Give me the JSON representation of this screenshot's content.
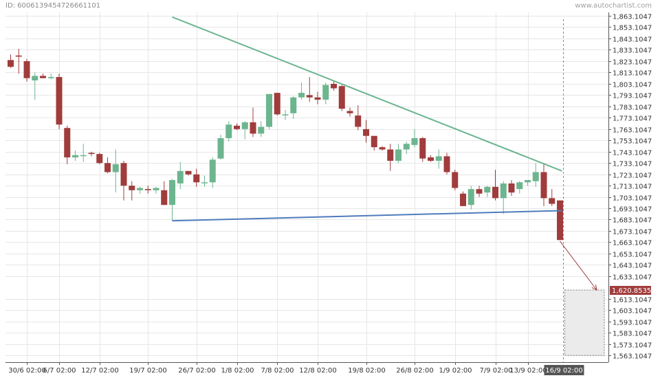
{
  "header": {
    "id_label": "ID: 6006139454726661101",
    "watermark": "www.autochartist.com"
  },
  "colors": {
    "up": "#6db58f",
    "down": "#a03c3c",
    "resistance": "#6ab48f",
    "support": "#4f7bbd",
    "projection": "#a03c3c",
    "target_label_bg": "#a03c3c",
    "current_label_bg": "#555555",
    "grid": "#e6e6e6",
    "axis": "#555555"
  },
  "chart_data": {
    "type": "candlestick",
    "y_axis": {
      "position": "right",
      "range": [
        1557.1047,
        1866.1047
      ],
      "ticks": [
        1863.1047,
        1853.1047,
        1843.1047,
        1833.1047,
        1823.1047,
        1813.1047,
        1803.1047,
        1793.1047,
        1783.1047,
        1773.1047,
        1763.1047,
        1753.1047,
        1743.1047,
        1733.1047,
        1723.1047,
        1713.1047,
        1703.1047,
        1693.1047,
        1683.1047,
        1673.1047,
        1663.1047,
        1653.1047,
        1643.1047,
        1633.1047,
        1613.1047,
        1603.1047,
        1593.1047,
        1583.1047,
        1573.1047,
        1563.1047
      ],
      "tick_labels": [
        "1,863.1047",
        "1,853.1047",
        "1,843.1047",
        "1,833.1047",
        "1,823.1047",
        "1,813.1047",
        "1,803.1047",
        "1,793.1047",
        "1,783.1047",
        "1,773.1047",
        "1,763.1047",
        "1,753.1047",
        "1,743.1047",
        "1,733.1047",
        "1,723.1047",
        "1,713.1047",
        "1,703.1047",
        "1,693.1047",
        "1,683.1047",
        "1,673.1047",
        "1,663.1047",
        "1,653.1047",
        "1,643.1047",
        "1,633.1047",
        "1,613.1047",
        "1,603.1047",
        "1,593.1047",
        "1,583.1047",
        "1,573.1047",
        "1,563.1047"
      ]
    },
    "x_labels": [
      {
        "index": 2,
        "text": "30/6 02:00"
      },
      {
        "index": 6,
        "text": "6/7 02:00"
      },
      {
        "index": 11,
        "text": "12/7 02:00"
      },
      {
        "index": 17,
        "text": "19/7 02:00"
      },
      {
        "index": 23,
        "text": "26/7 02:00"
      },
      {
        "index": 28,
        "text": "1/8 02:00"
      },
      {
        "index": 33,
        "text": "7/8 02:00"
      },
      {
        "index": 38,
        "text": "12/8 02:00"
      },
      {
        "index": 44,
        "text": "19/8 02:00"
      },
      {
        "index": 50,
        "text": "26/8 02:00"
      },
      {
        "index": 55,
        "text": "1/9 02:00"
      },
      {
        "index": 60,
        "text": "7/9 02:00"
      },
      {
        "index": 64,
        "text": "13/9 02:00"
      }
    ],
    "current_label": "16/9 02:00",
    "candles": [
      {
        "o": 1824,
        "h": 1829,
        "l": 1817,
        "c": 1818
      },
      {
        "o": 1828,
        "h": 1834,
        "l": 1812,
        "c": 1827
      },
      {
        "o": 1823,
        "h": 1825,
        "l": 1805,
        "c": 1808
      },
      {
        "o": 1806,
        "h": 1813,
        "l": 1789,
        "c": 1810
      },
      {
        "o": 1810,
        "h": 1812,
        "l": 1808,
        "c": 1808
      },
      {
        "o": 1808,
        "h": 1812,
        "l": 1807,
        "c": 1809
      },
      {
        "o": 1809,
        "h": 1812,
        "l": 1763,
        "c": 1767
      },
      {
        "o": 1764,
        "h": 1766,
        "l": 1732,
        "c": 1738
      },
      {
        "o": 1738,
        "h": 1744,
        "l": 1735,
        "c": 1740
      },
      {
        "o": 1740,
        "h": 1750,
        "l": 1734,
        "c": 1740
      },
      {
        "o": 1742,
        "h": 1743,
        "l": 1739,
        "c": 1741
      },
      {
        "o": 1741,
        "h": 1742,
        "l": 1732,
        "c": 1733
      },
      {
        "o": 1733,
        "h": 1738,
        "l": 1724,
        "c": 1725
      },
      {
        "o": 1725,
        "h": 1745,
        "l": 1707,
        "c": 1732
      },
      {
        "o": 1733,
        "h": 1735,
        "l": 1700,
        "c": 1713
      },
      {
        "o": 1713,
        "h": 1717,
        "l": 1700,
        "c": 1709
      },
      {
        "o": 1709,
        "h": 1712,
        "l": 1706,
        "c": 1711
      },
      {
        "o": 1710,
        "h": 1713,
        "l": 1706,
        "c": 1709
      },
      {
        "o": 1709,
        "h": 1712,
        "l": 1706,
        "c": 1711
      },
      {
        "o": 1709,
        "h": 1717,
        "l": 1697,
        "c": 1696
      },
      {
        "o": 1696,
        "h": 1719,
        "l": 1682,
        "c": 1718
      },
      {
        "o": 1715,
        "h": 1734,
        "l": 1710,
        "c": 1726
      },
      {
        "o": 1726,
        "h": 1726,
        "l": 1722,
        "c": 1723
      },
      {
        "o": 1723,
        "h": 1728,
        "l": 1712,
        "c": 1716
      },
      {
        "o": 1716,
        "h": 1722,
        "l": 1712,
        "c": 1716
      },
      {
        "o": 1716,
        "h": 1738,
        "l": 1711,
        "c": 1736
      },
      {
        "o": 1737,
        "h": 1758,
        "l": 1736,
        "c": 1755
      },
      {
        "o": 1755,
        "h": 1770,
        "l": 1752,
        "c": 1767
      },
      {
        "o": 1766,
        "h": 1768,
        "l": 1762,
        "c": 1763
      },
      {
        "o": 1763,
        "h": 1770,
        "l": 1754,
        "c": 1769
      },
      {
        "o": 1769,
        "h": 1782,
        "l": 1756,
        "c": 1759
      },
      {
        "o": 1759,
        "h": 1770,
        "l": 1756,
        "c": 1765
      },
      {
        "o": 1765,
        "h": 1794,
        "l": 1763,
        "c": 1794
      },
      {
        "o": 1795,
        "h": 1795,
        "l": 1775,
        "c": 1776
      },
      {
        "o": 1776,
        "h": 1780,
        "l": 1771,
        "c": 1776
      },
      {
        "o": 1777,
        "h": 1792,
        "l": 1772,
        "c": 1791
      },
      {
        "o": 1791,
        "h": 1804,
        "l": 1789,
        "c": 1795
      },
      {
        "o": 1793,
        "h": 1809,
        "l": 1787,
        "c": 1791
      },
      {
        "o": 1791,
        "h": 1796,
        "l": 1785,
        "c": 1789
      },
      {
        "o": 1789,
        "h": 1804,
        "l": 1785,
        "c": 1802
      },
      {
        "o": 1803,
        "h": 1805,
        "l": 1797,
        "c": 1799
      },
      {
        "o": 1801,
        "h": 1802,
        "l": 1779,
        "c": 1781
      },
      {
        "o": 1779,
        "h": 1782,
        "l": 1774,
        "c": 1777
      },
      {
        "o": 1775,
        "h": 1784,
        "l": 1762,
        "c": 1765
      },
      {
        "o": 1763,
        "h": 1771,
        "l": 1751,
        "c": 1757
      },
      {
        "o": 1757,
        "h": 1754,
        "l": 1744,
        "c": 1747
      },
      {
        "o": 1747,
        "h": 1748,
        "l": 1744,
        "c": 1745
      },
      {
        "o": 1745,
        "h": 1750,
        "l": 1726,
        "c": 1735
      },
      {
        "o": 1735,
        "h": 1750,
        "l": 1733,
        "c": 1745
      },
      {
        "o": 1745,
        "h": 1752,
        "l": 1741,
        "c": 1750
      },
      {
        "o": 1749,
        "h": 1763,
        "l": 1747,
        "c": 1755
      },
      {
        "o": 1755,
        "h": 1756,
        "l": 1734,
        "c": 1737
      },
      {
        "o": 1738,
        "h": 1740,
        "l": 1734,
        "c": 1735
      },
      {
        "o": 1735,
        "h": 1745,
        "l": 1728,
        "c": 1739
      },
      {
        "o": 1739,
        "h": 1742,
        "l": 1723,
        "c": 1725
      },
      {
        "o": 1725,
        "h": 1727,
        "l": 1709,
        "c": 1711
      },
      {
        "o": 1706,
        "h": 1708,
        "l": 1695,
        "c": 1695
      },
      {
        "o": 1696,
        "h": 1713,
        "l": 1692,
        "c": 1710
      },
      {
        "o": 1710,
        "h": 1713,
        "l": 1703,
        "c": 1706
      },
      {
        "o": 1707,
        "h": 1713,
        "l": 1703,
        "c": 1712
      },
      {
        "o": 1712,
        "h": 1727,
        "l": 1700,
        "c": 1702
      },
      {
        "o": 1702,
        "h": 1717,
        "l": 1688,
        "c": 1715
      },
      {
        "o": 1715,
        "h": 1718,
        "l": 1704,
        "c": 1707
      },
      {
        "o": 1710,
        "h": 1717,
        "l": 1706,
        "c": 1716
      },
      {
        "o": 1716,
        "h": 1718,
        "l": 1713,
        "c": 1718
      },
      {
        "o": 1717,
        "h": 1733,
        "l": 1712,
        "c": 1725
      },
      {
        "o": 1725,
        "h": 1732,
        "l": 1695,
        "c": 1702
      },
      {
        "o": 1702,
        "h": 1710,
        "l": 1695,
        "c": 1697
      },
      {
        "o": 1700,
        "h": 1700,
        "l": 1665,
        "c": 1665
      }
    ],
    "pattern": {
      "resistance_line": {
        "from": {
          "index": 20,
          "value": 1862
        },
        "to": {
          "index": 68,
          "value": 1726
        }
      },
      "support_line": {
        "from": {
          "index": 20,
          "value": 1682
        },
        "to": {
          "index": 68,
          "value": 1691
        }
      },
      "projection": {
        "from": {
          "index": 68,
          "value": 1664
        },
        "to_value": 1620.8535
      },
      "target_zone": {
        "top": 1620.8535,
        "bottom": 1563.1047
      },
      "target_label": "1,620.8535"
    },
    "grid": true
  }
}
